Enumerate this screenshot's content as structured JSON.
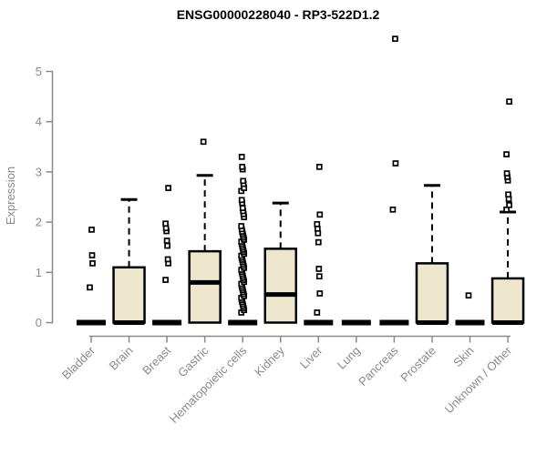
{
  "title": "ENSG00000228040 - RP3-522D1.2",
  "colors": {
    "box_fill": "#EDE8CD",
    "box_stroke": "#000000",
    "median": "#000000",
    "axis": "#8A8A8A",
    "outlier_fill": "#FFFFFF",
    "background": "#FFFFFF"
  },
  "chart_data": {
    "type": "boxplot",
    "title": "ENSG00000228040 - RP3-522D1.2",
    "xlabel": "",
    "ylabel": "Expression",
    "ylim": [
      0,
      5
    ],
    "yticks": [
      0,
      1,
      2,
      3,
      4,
      5
    ],
    "grid": false,
    "legend": "none",
    "categories": [
      "Bladder",
      "Brain",
      "Breast",
      "Gastric",
      "Hematopoietic cells",
      "Kidney",
      "Liver",
      "Lung",
      "Pancreas",
      "Prostate",
      "Skin",
      "Unknown / Other"
    ],
    "boxes": [
      {
        "category": "Bladder",
        "q1": 0,
        "median": 0,
        "q3": 0,
        "whisker_low": 0,
        "whisker_high": 0,
        "outliers": [
          0.7,
          1.18,
          1.34,
          1.85
        ]
      },
      {
        "category": "Brain",
        "q1": 0,
        "median": 0,
        "q3": 1.1,
        "whisker_low": 0,
        "whisker_high": 2.45,
        "outliers": []
      },
      {
        "category": "Breast",
        "q1": 0,
        "median": 0,
        "q3": 0,
        "whisker_low": 0,
        "whisker_high": 0,
        "outliers": [
          0.85,
          1.18,
          1.26,
          1.53,
          1.63,
          1.82,
          1.88,
          1.97,
          2.68
        ]
      },
      {
        "category": "Gastric",
        "q1": 0,
        "median": 0.8,
        "q3": 1.42,
        "whisker_low": 0,
        "whisker_high": 2.93,
        "outliers": [
          3.6
        ]
      },
      {
        "category": "Hematopoietic cells",
        "q1": 0,
        "median": 0,
        "q3": 0,
        "whisker_low": 0,
        "whisker_high": 0,
        "outliers": [
          0.2,
          0.25,
          0.29,
          0.33,
          0.37,
          0.41,
          0.45,
          0.49,
          0.53,
          0.57,
          0.61,
          0.65,
          0.69,
          0.73,
          0.77,
          0.81,
          0.85,
          0.89,
          0.93,
          0.97,
          1.01,
          1.05,
          1.09,
          1.13,
          1.17,
          1.21,
          1.25,
          1.29,
          1.33,
          1.37,
          1.41,
          1.45,
          1.49,
          1.53,
          1.57,
          1.61,
          1.65,
          1.69,
          1.73,
          1.77,
          1.81,
          1.86,
          1.92,
          2.1,
          2.16,
          2.22,
          2.28,
          2.38,
          2.44,
          2.62,
          2.68,
          2.76,
          2.82,
          3.05,
          3.1,
          3.3
        ]
      },
      {
        "category": "Kidney",
        "q1": 0,
        "median": 0.56,
        "q3": 1.47,
        "whisker_low": 0,
        "whisker_high": 2.38,
        "outliers": []
      },
      {
        "category": "Liver",
        "q1": 0,
        "median": 0,
        "q3": 0,
        "whisker_low": 0,
        "whisker_high": 0,
        "outliers": [
          0.2,
          0.58,
          0.92,
          1.07,
          1.6,
          1.78,
          1.87,
          1.96,
          2.15,
          3.1
        ]
      },
      {
        "category": "Lung",
        "q1": 0,
        "median": 0,
        "q3": 0,
        "whisker_low": 0,
        "whisker_high": 0,
        "outliers": []
      },
      {
        "category": "Pancreas",
        "q1": 0,
        "median": 0,
        "q3": 0,
        "whisker_low": 0,
        "whisker_high": 0,
        "outliers": [
          2.25,
          3.17,
          5.65
        ]
      },
      {
        "category": "Prostate",
        "q1": 0,
        "median": 0,
        "q3": 1.18,
        "whisker_low": 0,
        "whisker_high": 2.73,
        "outliers": []
      },
      {
        "category": "Skin",
        "q1": 0,
        "median": 0,
        "q3": 0,
        "whisker_low": 0,
        "whisker_high": 0,
        "outliers": [
          0.54
        ]
      },
      {
        "category": "Unknown / Other",
        "q1": 0,
        "median": 0,
        "q3": 0.88,
        "whisker_low": 0,
        "whisker_high": 2.2,
        "outliers": [
          2.25,
          2.34,
          2.46,
          2.55,
          2.83,
          2.9,
          2.97,
          3.35,
          4.4
        ]
      }
    ]
  }
}
